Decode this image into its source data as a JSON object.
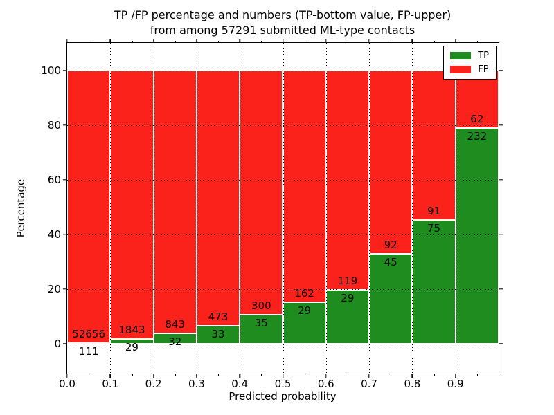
{
  "chart_data": {
    "type": "bar",
    "stacked": true,
    "title_line1": "TP /FP percentage and numbers (TP-bottom value, FP-upper)",
    "title_line2": "from among 57291 submitted ML-type contacts",
    "xlabel": "Predicted probability",
    "ylabel": "Percentage",
    "xlim": [
      0.0,
      1.0
    ],
    "ylim": [
      -11,
      110
    ],
    "grid": "dotted black, both axes",
    "bin_width": 0.1,
    "x_tick_labels": [
      "0.0",
      "0.1",
      "0.2",
      "0.3",
      "0.4",
      "0.5",
      "0.6",
      "0.7",
      "0.8",
      "0.9"
    ],
    "x_minor_ticks": [
      0.05,
      0.15,
      0.25,
      0.35,
      0.45,
      0.55,
      0.65,
      0.75,
      0.85,
      0.95
    ],
    "y_tick_values": [
      0,
      20,
      40,
      60,
      80,
      100
    ],
    "y_tick_labels": [
      "0",
      "20",
      "40",
      "60",
      "80",
      "100"
    ],
    "series": [
      {
        "name": "TP",
        "color": "#1e8c1e"
      },
      {
        "name": "FP",
        "color": "#fa221a"
      }
    ],
    "bins": [
      {
        "x_start": 0.0,
        "tp": 111,
        "fp": 52656
      },
      {
        "x_start": 0.1,
        "tp": 29,
        "fp": 1843
      },
      {
        "x_start": 0.2,
        "tp": 32,
        "fp": 843
      },
      {
        "x_start": 0.3,
        "tp": 33,
        "fp": 473
      },
      {
        "x_start": 0.4,
        "tp": 35,
        "fp": 300
      },
      {
        "x_start": 0.5,
        "tp": 29,
        "fp": 162
      },
      {
        "x_start": 0.6,
        "tp": 29,
        "fp": 119
      },
      {
        "x_start": 0.7,
        "tp": 45,
        "fp": 92
      },
      {
        "x_start": 0.8,
        "tp": 75,
        "fp": 91
      },
      {
        "x_start": 0.9,
        "tp": 232,
        "fp": 62
      }
    ],
    "legend": {
      "position": "upper right",
      "items": [
        {
          "label": "TP",
          "color": "#1e8c1e"
        },
        {
          "label": "FP",
          "color": "#fa221a"
        }
      ]
    },
    "colors": {
      "tp": "#1e8c1e",
      "fp": "#fa221a",
      "edge": "#ffffff",
      "text": "#000000"
    }
  }
}
